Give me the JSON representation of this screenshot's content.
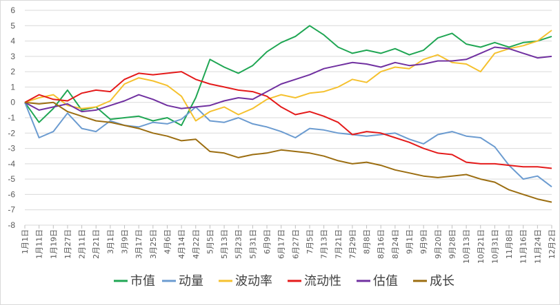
{
  "chart_data": {
    "type": "line",
    "title": "",
    "xlabel": "",
    "ylabel": "",
    "ylim": [
      -8,
      6
    ],
    "yticks": [
      "6",
      "5",
      "4",
      "3",
      "2",
      "1",
      "0",
      "-1",
      "-2",
      "-3",
      "-4",
      "-5",
      "-6",
      "-7",
      "-8"
    ],
    "grid": true,
    "legend_position": "bottom",
    "x": [
      "1月1日",
      "1月11日",
      "1月19日",
      "1月27日",
      "2月11日",
      "2月21日",
      "3月1日",
      "3月9日",
      "3月17日",
      "3月25日",
      "4月6日",
      "4月14日",
      "4月22日",
      "5月5日",
      "5月13日",
      "5月23日",
      "5月31日",
      "6月9日",
      "6月17日",
      "6月27日",
      "7月5日",
      "7月13日",
      "7月21日",
      "7月29日",
      "8月8日",
      "8月16日",
      "8月24日",
      "9月1日",
      "9月9日",
      "9月20日",
      "9月28日",
      "10月13日",
      "10月21日",
      "10月31日",
      "11月8日",
      "11月16日",
      "11月24日",
      "12月2日"
    ],
    "series": [
      {
        "name": "市值",
        "color": "#1fa653",
        "values": [
          0,
          -1.3,
          -0.4,
          0.8,
          -0.5,
          -0.3,
          -1.1,
          -1.0,
          -0.9,
          -1.2,
          -1.0,
          -1.5,
          0.3,
          2.8,
          2.3,
          1.9,
          2.4,
          3.3,
          3.9,
          4.3,
          5.0,
          4.4,
          3.6,
          3.2,
          3.4,
          3.2,
          3.5,
          3.1,
          3.4,
          4.2,
          4.5,
          3.8,
          3.6,
          3.9,
          3.6,
          3.9,
          4.0,
          4.3
        ]
      },
      {
        "name": "动量",
        "color": "#6b9bd0",
        "values": [
          0,
          -2.3,
          -1.9,
          -0.7,
          -1.7,
          -1.9,
          -1.2,
          -1.5,
          -1.6,
          -1.3,
          -1.4,
          -1.1,
          -0.3,
          -1.2,
          -1.3,
          -1.0,
          -1.4,
          -1.6,
          -1.9,
          -2.3,
          -1.7,
          -1.8,
          -2.0,
          -2.1,
          -2.2,
          -2.1,
          -2.0,
          -2.4,
          -2.7,
          -2.1,
          -1.9,
          -2.2,
          -2.3,
          -2.9,
          -4.1,
          -5.0,
          -4.8,
          -5.5
        ]
      },
      {
        "name": "波动率",
        "color": "#f5c12e",
        "values": [
          0,
          0.3,
          0.5,
          -0.2,
          -0.4,
          -0.3,
          0.1,
          1.2,
          1.6,
          1.4,
          1.1,
          0.4,
          -1.2,
          -0.6,
          -0.3,
          -0.8,
          -0.4,
          0.2,
          0.5,
          0.3,
          0.6,
          0.7,
          1.0,
          1.5,
          1.3,
          2.0,
          2.3,
          2.2,
          2.8,
          3.1,
          2.6,
          2.5,
          2.0,
          3.2,
          3.5,
          3.7,
          4.0,
          4.7
        ]
      },
      {
        "name": "流动性",
        "color": "#e41a1a",
        "values": [
          0,
          0.5,
          0.2,
          0.1,
          0.6,
          0.8,
          0.7,
          1.5,
          1.9,
          1.8,
          1.9,
          2.0,
          1.5,
          1.2,
          1.0,
          0.8,
          0.7,
          0.4,
          -0.3,
          -0.8,
          -0.6,
          -0.9,
          -1.3,
          -2.1,
          -1.9,
          -2.0,
          -2.3,
          -2.6,
          -3.0,
          -3.3,
          -3.4,
          -3.9,
          -4.0,
          -4.0,
          -4.1,
          -4.2,
          -4.2,
          -4.3
        ]
      },
      {
        "name": "估值",
        "color": "#7030a0",
        "values": [
          0,
          -0.5,
          -0.3,
          -0.1,
          -0.6,
          -0.5,
          -0.2,
          0.1,
          0.5,
          0.2,
          -0.2,
          -0.4,
          -0.3,
          -0.2,
          0.1,
          0.3,
          0.2,
          0.7,
          1.2,
          1.5,
          1.8,
          2.2,
          2.4,
          2.6,
          2.5,
          2.3,
          2.6,
          2.4,
          2.5,
          2.7,
          2.7,
          2.8,
          3.2,
          3.6,
          3.5,
          3.2,
          2.9,
          3.0
        ]
      },
      {
        "name": "成长",
        "color": "#9b6d10",
        "values": [
          0,
          -0.1,
          0.0,
          -0.6,
          -0.9,
          -1.2,
          -1.3,
          -1.5,
          -1.7,
          -2.0,
          -2.2,
          -2.5,
          -2.4,
          -3.2,
          -3.3,
          -3.6,
          -3.4,
          -3.3,
          -3.1,
          -3.2,
          -3.3,
          -3.5,
          -3.8,
          -4.0,
          -3.9,
          -4.1,
          -4.4,
          -4.6,
          -4.8,
          -4.9,
          -4.8,
          -4.7,
          -5.0,
          -5.2,
          -5.7,
          -6.0,
          -6.3,
          -6.5
        ]
      }
    ]
  }
}
